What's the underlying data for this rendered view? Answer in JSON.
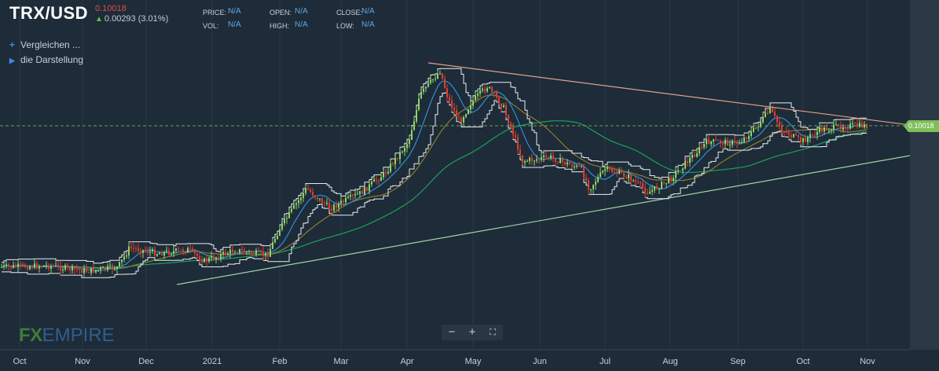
{
  "header": {
    "symbol": "TRX/USD",
    "price": "0.10018",
    "change": "0.00293 (3.01%)"
  },
  "ohlc": {
    "price_label": "PRICE:",
    "price_value": "N/A",
    "open_label": "OPEN:",
    "open_value": "N/A",
    "close_label": "CLOSE:",
    "close_value": "N/A",
    "vol_label": "VOL:",
    "vol_value": "N/A",
    "high_label": "HIGH:",
    "high_value": "N/A",
    "low_label": "LOW:",
    "low_value": "N/A"
  },
  "menu": {
    "compare": "Vergleichen ...",
    "display": "die Darstellung"
  },
  "price_tag": "0.10018",
  "zoom": {
    "minus": "−",
    "plus": "+",
    "fullscreen": "⛶"
  },
  "logo": {
    "fx": "FX",
    "empire": "EMPIRE"
  },
  "colors": {
    "background": "#1e2b38",
    "bull": "#8fd36a",
    "bear": "#d9412f",
    "ma_fast": "#2f8fd8",
    "ma_mid": "#8c7f2d",
    "ma_slow": "#19a35a",
    "channel": "#e8eef4",
    "resistance": "#e0a08a",
    "support": "#9fd3a8",
    "price_line": "#7fbf5a"
  },
  "chart_data": {
    "type": "candlestick",
    "title": "TRX/USD",
    "x_ticks": [
      "Oct",
      "Nov",
      "Dec",
      "2021",
      "Feb",
      "Mar",
      "Apr",
      "May",
      "Jun",
      "Jul",
      "Aug",
      "Sep",
      "Oct",
      "Nov"
    ],
    "last_price": 0.10018,
    "indicators": [
      "moving average (fast)",
      "moving average (mid)",
      "moving average (slow)",
      "Donchian channel",
      "trendline"
    ]
  }
}
